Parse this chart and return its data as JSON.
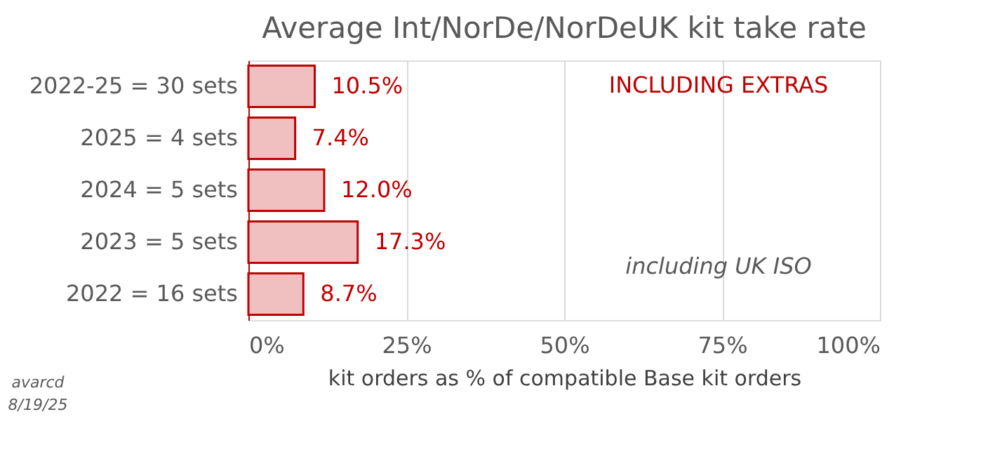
{
  "chart_data": {
    "type": "bar",
    "orientation": "horizontal",
    "title": "Average Int/NorDe/NorDeUK kit take rate",
    "xlabel": "kit orders as % of compatible Base kit orders",
    "categories": [
      "2022-25 = 30 sets",
      "2025 = 4 sets",
      "2024 = 5 sets",
      "2023 = 5 sets",
      "2022 = 16 sets"
    ],
    "series": [
      {
        "color": "#c00000",
        "values": [
          10.5,
          7.4,
          12.0,
          17.3,
          8.7
        ],
        "value_labels": [
          "10.5%",
          "7.4%",
          "12.0%",
          "17.3%",
          "8.7%"
        ]
      }
    ],
    "xlim": [
      0,
      100
    ],
    "xticks": [
      {
        "value": 0,
        "label": "0%"
      },
      {
        "value": 25,
        "label": "25%"
      },
      {
        "value": 50,
        "label": "50%"
      },
      {
        "value": 75,
        "label": "75%"
      },
      {
        "value": 100,
        "label": "100%"
      }
    ],
    "grid": "x",
    "annotations": [
      "INCLUDING EXTRAS",
      "including UK ISO",
      "avarcd",
      "8/19/25"
    ]
  }
}
